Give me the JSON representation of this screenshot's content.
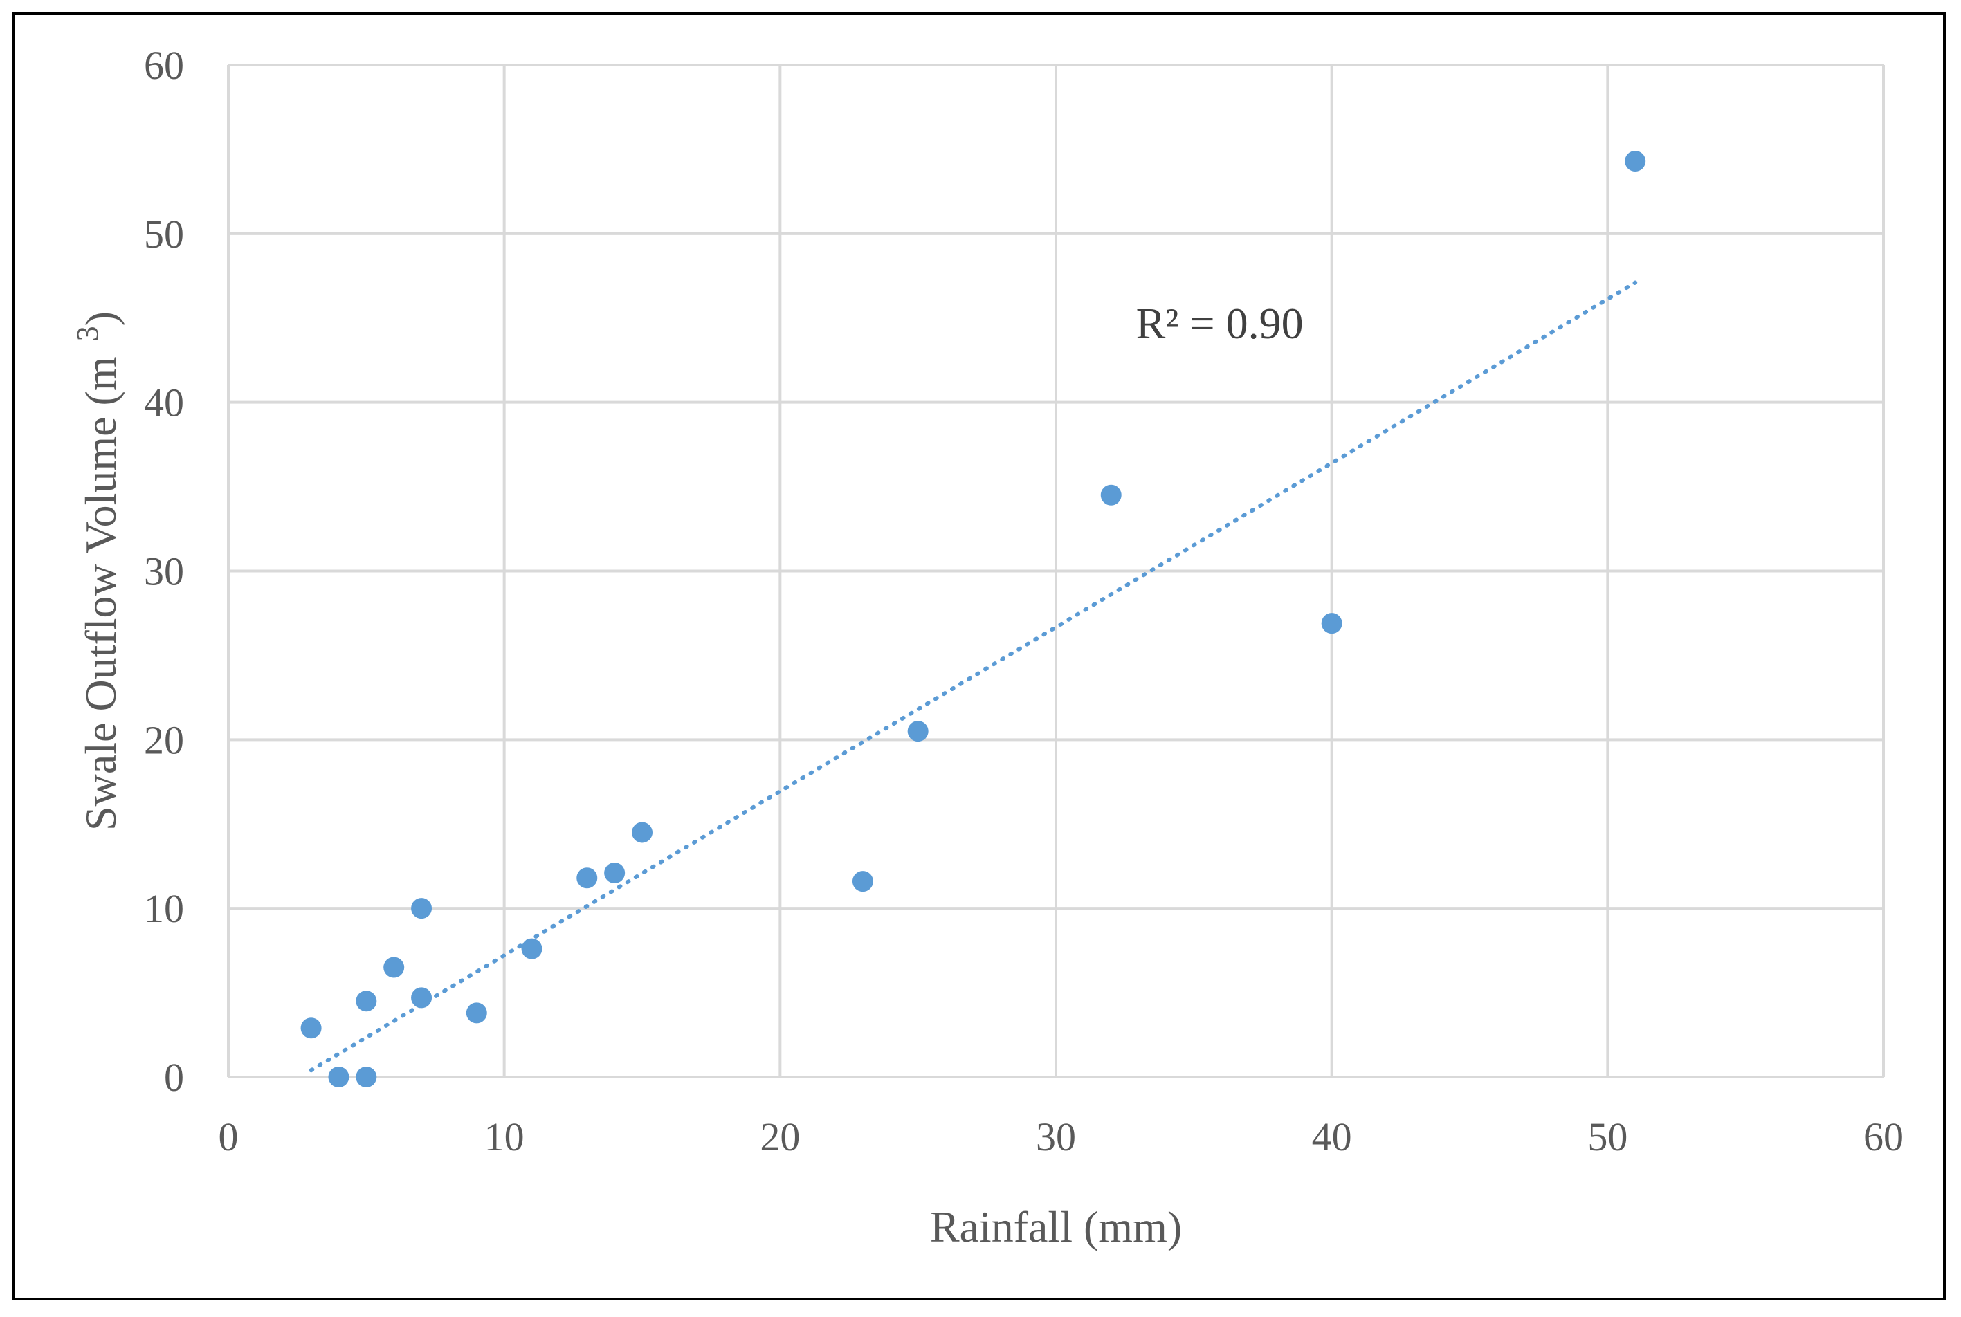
{
  "chart_data": {
    "type": "scatter",
    "title": "",
    "xlabel": "Rainfall (mm)",
    "ylabel": "Swale Outflow  Volume (m",
    "ylabel_superscript": "3",
    "ylabel_close": ")",
    "xlim": [
      0,
      60
    ],
    "ylim": [
      0,
      60
    ],
    "xticks": [
      0,
      10,
      20,
      30,
      40,
      50,
      60
    ],
    "yticks": [
      0,
      10,
      20,
      30,
      40,
      50,
      60
    ],
    "grid": true,
    "legend": "none",
    "series": [
      {
        "name": "Swale outflow",
        "color": "#5b9bd5",
        "points": [
          {
            "x": 3,
            "y": 2.9
          },
          {
            "x": 4,
            "y": 0.0
          },
          {
            "x": 5,
            "y": 0.0
          },
          {
            "x": 5,
            "y": 4.5
          },
          {
            "x": 6,
            "y": 6.5
          },
          {
            "x": 7,
            "y": 4.7
          },
          {
            "x": 7,
            "y": 10.0
          },
          {
            "x": 9,
            "y": 3.8
          },
          {
            "x": 11,
            "y": 7.6
          },
          {
            "x": 13,
            "y": 11.8
          },
          {
            "x": 14,
            "y": 12.1
          },
          {
            "x": 15,
            "y": 14.5
          },
          {
            "x": 23,
            "y": 11.6
          },
          {
            "x": 25,
            "y": 20.5
          },
          {
            "x": 32,
            "y": 34.5
          },
          {
            "x": 40,
            "y": 26.9
          },
          {
            "x": 51,
            "y": 54.3
          }
        ]
      }
    ],
    "trendline": {
      "type": "linear",
      "color": "#5b9bd5",
      "x_start": 3,
      "y_start": 0.4,
      "x_end": 51,
      "y_end": 47.1
    },
    "annotations": [
      {
        "text": "R² = 0.90",
        "x": 32.9,
        "y": 44.7
      }
    ]
  }
}
